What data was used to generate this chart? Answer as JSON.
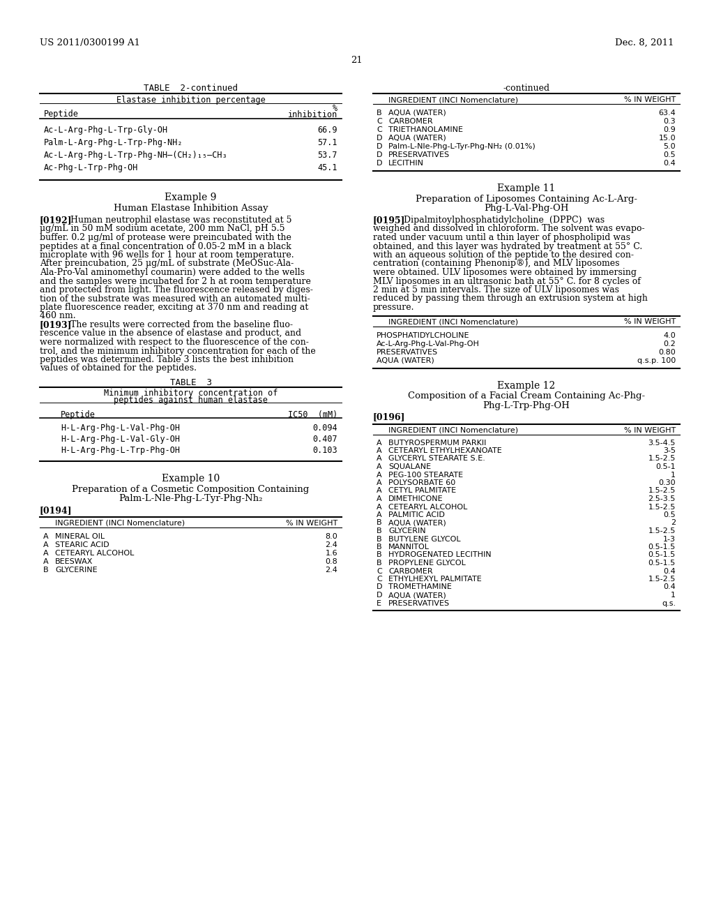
{
  "header_left": "US 2011/0300199 A1",
  "header_right": "Dec. 8, 2011",
  "page_number": "21",
  "background_color": "#ffffff",
  "table2_title": "TABLE  2-continued",
  "table2_subtitle": "Elastase inhibition percentage",
  "table2_col1": "Peptide",
  "table2_col2_line1": "%",
  "table2_col2_line2": "inhibition",
  "table2_rows": [
    [
      "Ac-L-Arg-Phg-L-Trp-Gly-OH",
      "66.9"
    ],
    [
      "Palm-L-Arg-Phg-L-Trp-Phg-NH₂",
      "57.1"
    ],
    [
      "Ac-L-Arg-Phg-L-Trp-Phg-NH–(CH₂)₁₅–CH₃",
      "53.7"
    ],
    [
      "Ac-Phg-L-Trp-Phg-OH",
      "45.1"
    ]
  ],
  "example9_title": "Example 9",
  "example9_subtitle": "Human Elastase Inhibition Assay",
  "p192_lines": [
    "[0192]",
    "Human neutrophil elastase was reconstituted at 5",
    "μg/mL in 50 mM sodium acetate, 200 mm NaCl, pH 5.5",
    "buffer. 0.2 μg/ml of protease were preincubated with the",
    "peptides at a final concentration of 0.05-2 mM in a black",
    "microplate with 96 wells for 1 hour at room temperature.",
    "After preincubation, 25 μg/mL of substrate (MeOSuc-Ala-",
    "Ala-Pro-Val aminomethyl coumarin) were added to the wells",
    "and the samples were incubated for 2 h at room temperature",
    "and protected from light. The fluorescence released by diges-",
    "tion of the substrate was measured with an automated multi-",
    "plate fluorescence reader, exciting at 370 nm and reading at",
    "460 nm."
  ],
  "p193_lines": [
    "[0193]",
    "The results were corrected from the baseline fluo-",
    "rescence value in the absence of elastase and product, and",
    "were normalized with respect to the fluorescence of the con-",
    "trol, and the minimum inhibitory concentration for each of the",
    "peptides was determined. Table 3 lists the best inhibition",
    "values of obtained for the peptides."
  ],
  "table3_title": "TABLE  3",
  "table3_subtitle1": "Minimum inhibitory concentration of",
  "table3_subtitle2": "peptides against human elastase",
  "table3_col1": "Peptide",
  "table3_col2": "IC50  (mM)",
  "table3_rows": [
    [
      "H-L-Arg-Phg-L-Val-Phg-OH",
      "0.094"
    ],
    [
      "H-L-Arg-Phg-L-Val-Gly-OH",
      "0.407"
    ],
    [
      "H-L-Arg-Phg-L-Trp-Phg-OH",
      "0.103"
    ]
  ],
  "example10_title": "Example 10",
  "example10_subtitle1": "Preparation of a Cosmetic Composition Containing",
  "example10_subtitle2": "Palm-L-Nle-Phg-L-Tyr-Phg-Nh₂",
  "para_0194": "[0194]",
  "table10_col1": "INGREDIENT (INCI Nomenclature)",
  "table10_col2": "% IN WEIGHT",
  "table10_rows": [
    [
      "A",
      "MINERAL OIL",
      "8.0"
    ],
    [
      "A",
      "STEARIC ACID",
      "2.4"
    ],
    [
      "A",
      "CETEARYL ALCOHOL",
      "1.6"
    ],
    [
      "A",
      "BEESWAX",
      "0.8"
    ],
    [
      "B",
      "GLYCERINE",
      "2.4"
    ]
  ],
  "right_continued_label": "-continued",
  "right_col_header_label": "INGREDIENT (INCI Nomenclature)",
  "right_col_header_weight": "% IN WEIGHT",
  "right_table1_rows": [
    [
      "B",
      "AQUA (WATER)",
      "63.4"
    ],
    [
      "C",
      "CARBOMER",
      "0.3"
    ],
    [
      "C",
      "TRIETHANOLAMINE",
      "0.9"
    ],
    [
      "D",
      "AQUA (WATER)",
      "15.0"
    ],
    [
      "D",
      "Palm-L-Nle-Phg-L-Tyr-Phg-NH₂ (0.01%)",
      "5.0"
    ],
    [
      "D",
      "PRESERVATIVES",
      "0.5"
    ],
    [
      "D",
      "LECITHIN",
      "0.4"
    ]
  ],
  "example11_title": "Example 11",
  "example11_subtitle1": "Preparation of Liposomes Containing Ac-L-Arg-",
  "example11_subtitle2": "Phg-L-Val-Phg-OH",
  "p195_lines": [
    "[0195]",
    "Dipalmitoylphosphatidylcholine  (DPPC)  was",
    "weighed and dissolved in chloroform. The solvent was evapo-",
    "rated under vacuum until a thin layer of phospholipid was",
    "obtained, and this layer was hydrated by treatment at 55° C.",
    "with an aqueous solution of the peptide to the desired con-",
    "centration (containing Phenonip®), and MLV liposomes",
    "were obtained. ULV liposomes were obtained by immersing",
    "MLV liposomes in an ultrasonic bath at 55° C. for 8 cycles of",
    "2 min at 5 min intervals. The size of ULV liposomes was",
    "reduced by passing them through an extrusion system at high",
    "pressure."
  ],
  "right_table2_col1": "INGREDIENT (INCI Nomenclature)",
  "right_table2_col2": "% IN WEIGHT",
  "right_table2_rows": [
    [
      "PHOSPHATIDYLCHOLINE",
      "4.0"
    ],
    [
      "Ac-L-Arg-Phg-L-Val-Phg-OH",
      "0.2"
    ],
    [
      "PRESERVATIVES",
      "0.80"
    ],
    [
      "AQUA (WATER)",
      "q.s.p. 100"
    ]
  ],
  "example12_title": "Example 12",
  "example12_subtitle1": "Composition of a Facial Cream Containing Ac-Phg-",
  "example12_subtitle2": "Phg-L-Trp-Phg-OH",
  "para_0196": "[0196]",
  "right_table3_col1": "INGREDIENT (INCI Nomenclature)",
  "right_table3_col2": "% IN WEIGHT",
  "right_table3_rows": [
    [
      "A",
      "BUTYROSPERMUM PARKII",
      "3.5-4.5"
    ],
    [
      "A",
      "CETEARYL ETHYLHEXANOATE",
      "3-5"
    ],
    [
      "A",
      "GLYCERYL STEARATE S.E.",
      "1.5-2.5"
    ],
    [
      "A",
      "SQUALANE",
      "0.5-1"
    ],
    [
      "A",
      "PEG-100 STEARATE",
      "1"
    ],
    [
      "A",
      "POLYSORBATE 60",
      "0.30"
    ],
    [
      "A",
      "CETYL PALMITATE",
      "1.5-2.5"
    ],
    [
      "A",
      "DIMETHICONE",
      "2.5-3.5"
    ],
    [
      "A",
      "CETEARYL ALCOHOL",
      "1.5-2.5"
    ],
    [
      "A",
      "PALMITIC ACID",
      "0.5"
    ],
    [
      "B",
      "AQUA (WATER)",
      "2"
    ],
    [
      "B",
      "GLYCERIN",
      "1.5-2.5"
    ],
    [
      "B",
      "BUTYLENE GLYCOL",
      "1-3"
    ],
    [
      "B",
      "MANNITOL",
      "0.5-1.5"
    ],
    [
      "B",
      "HYDROGENATED LECITHIN",
      "0.5-1.5"
    ],
    [
      "B",
      "PROPYLENE GLYCOL",
      "0.5-1.5"
    ],
    [
      "C",
      "CARBOMER",
      "0.4"
    ],
    [
      "C",
      "ETHYLHEXYL PALMITATE",
      "1.5-2.5"
    ],
    [
      "D",
      "TROMETHAMINE",
      "0.4"
    ],
    [
      "D",
      "AQUA (WATER)",
      "1"
    ],
    [
      "E",
      "PRESERVATIVES",
      "q.s."
    ]
  ]
}
